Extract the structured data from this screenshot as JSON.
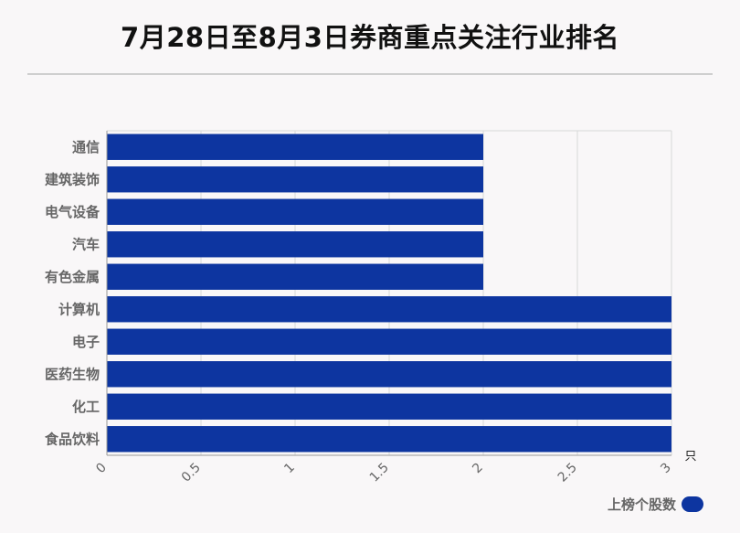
{
  "title": "7月28日至8月3日券商重点关注行业排名",
  "chart_data": {
    "type": "bar",
    "orientation": "horizontal",
    "title": "7月28日至8月3日券商重点关注行业排名",
    "categories": [
      "通信",
      "建筑装饰",
      "电气设备",
      "汽车",
      "有色金属",
      "计算机",
      "电子",
      "医药生物",
      "化工",
      "食品饮料"
    ],
    "series": [
      {
        "name": "上榜个股数",
        "values": [
          2,
          2,
          2,
          2,
          2,
          3,
          3,
          3,
          3,
          3
        ],
        "color": "#0d35a0"
      }
    ],
    "xlim": [
      0,
      3
    ],
    "xticks": [
      "0",
      "0.5",
      "1",
      "1.5",
      "2",
      "2.5",
      "3"
    ],
    "xunit": "只",
    "grid": true,
    "legend": "bottom-right"
  }
}
